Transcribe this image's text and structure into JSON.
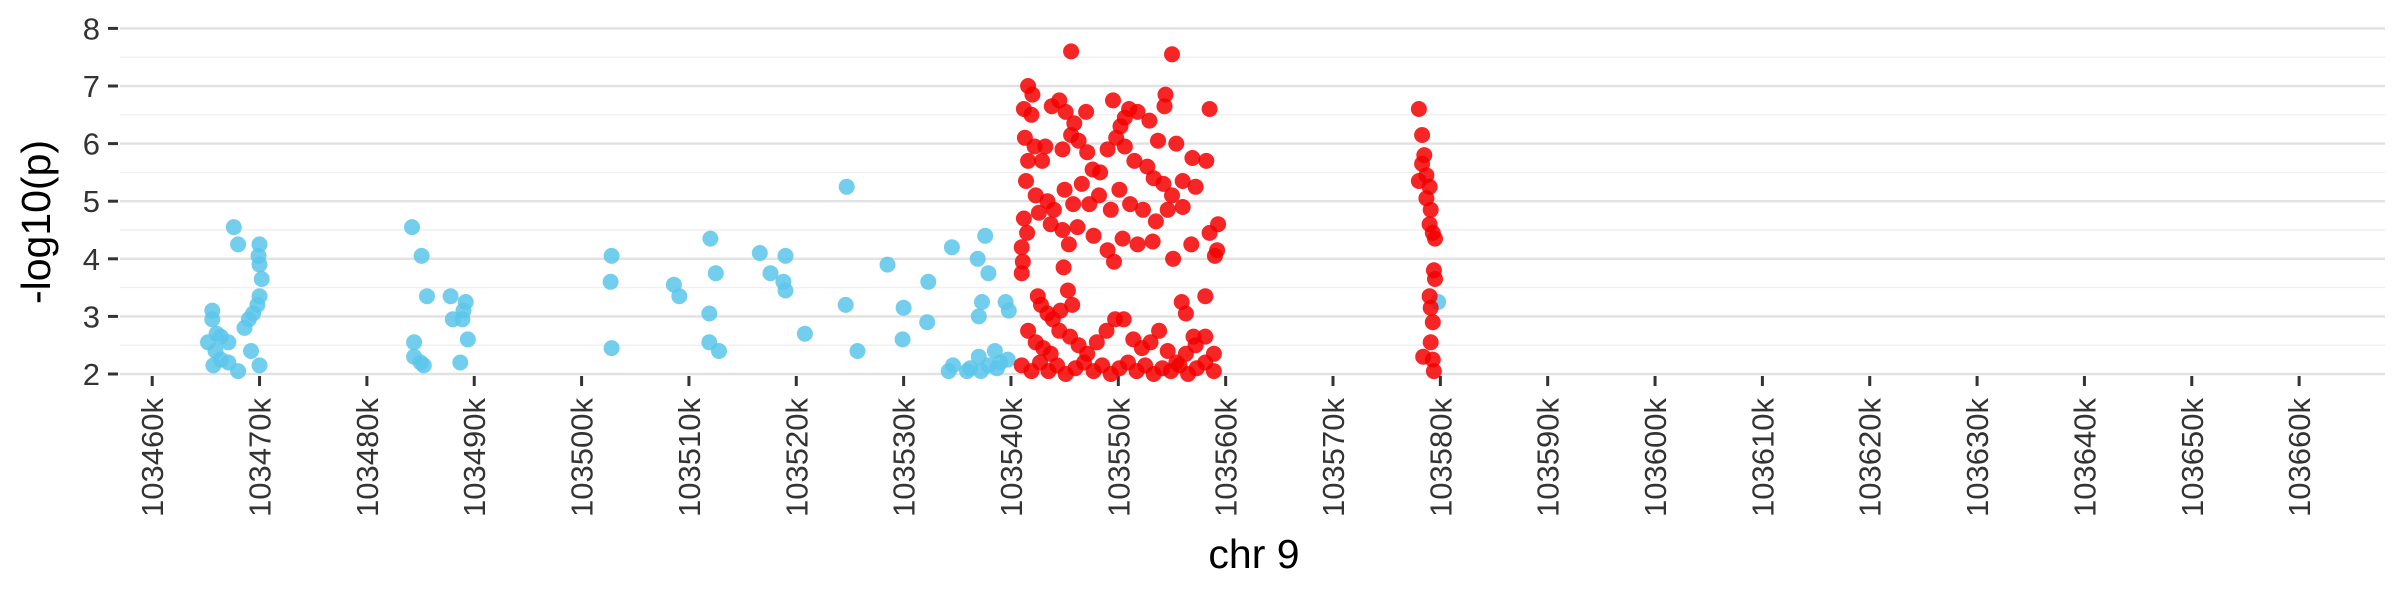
{
  "chart_data": {
    "type": "scatter",
    "title": "",
    "xlabel": "chr 9",
    "ylabel": "-log10(p)",
    "xlim": [
      103457000,
      103668000
    ],
    "ylim": [
      2,
      8.25
    ],
    "x_ticks": [
      103460000,
      103470000,
      103480000,
      103490000,
      103500000,
      103510000,
      103520000,
      103530000,
      103540000,
      103550000,
      103560000,
      103570000,
      103580000,
      103590000,
      103600000,
      103610000,
      103620000,
      103630000,
      103640000,
      103650000,
      103660000
    ],
    "x_tick_labels": [
      "103460k",
      "103470k",
      "103480k",
      "103490k",
      "103500k",
      "103510k",
      "103520k",
      "103530k",
      "103540k",
      "103550k",
      "103560k",
      "103570k",
      "103580k",
      "103590k",
      "103600k",
      "103610k",
      "103620k",
      "103630k",
      "103640k",
      "103650k",
      "103660k"
    ],
    "y_ticks": [
      2,
      3,
      4,
      5,
      6,
      7,
      8
    ],
    "y_tick_labels": [
      "2",
      "3",
      "4",
      "5",
      "6",
      "7",
      "8"
    ],
    "grid": "horizontal",
    "legend": "none",
    "series": [
      {
        "color": "#5bc5ea",
        "points": [
          [
            103467600,
            4.55
          ],
          [
            103468000,
            4.25
          ],
          [
            103470000,
            4.25
          ],
          [
            103469900,
            4.05
          ],
          [
            103470000,
            3.9
          ],
          [
            103470200,
            3.65
          ],
          [
            103470000,
            3.35
          ],
          [
            103469800,
            3.2
          ],
          [
            103469400,
            3.05
          ],
          [
            103469000,
            2.95
          ],
          [
            103468600,
            2.8
          ],
          [
            103469200,
            2.4
          ],
          [
            103470000,
            2.15
          ],
          [
            103465600,
            3.1
          ],
          [
            103465600,
            2.95
          ],
          [
            103466000,
            2.7
          ],
          [
            103465200,
            2.55
          ],
          [
            103466400,
            2.65
          ],
          [
            103467100,
            2.55
          ],
          [
            103465900,
            2.4
          ],
          [
            103466400,
            2.25
          ],
          [
            103465700,
            2.15
          ],
          [
            103467100,
            2.2
          ],
          [
            103468000,
            2.05
          ],
          [
            103484200,
            4.55
          ],
          [
            103485100,
            4.05
          ],
          [
            103485600,
            3.35
          ],
          [
            103487800,
            3.35
          ],
          [
            103488000,
            2.95
          ],
          [
            103489200,
            3.25
          ],
          [
            103489000,
            3.1
          ],
          [
            103488900,
            2.95
          ],
          [
            103489400,
            2.6
          ],
          [
            103484400,
            2.55
          ],
          [
            103484400,
            2.3
          ],
          [
            103485000,
            2.2
          ],
          [
            103485300,
            2.15
          ],
          [
            103488700,
            2.2
          ],
          [
            103502800,
            4.05
          ],
          [
            103502700,
            3.6
          ],
          [
            103502800,
            2.45
          ],
          [
            103508600,
            3.55
          ],
          [
            103509100,
            3.35
          ],
          [
            103512000,
            4.35
          ],
          [
            103512500,
            3.75
          ],
          [
            103511900,
            3.05
          ],
          [
            103511900,
            2.55
          ],
          [
            103512800,
            2.4
          ],
          [
            103516600,
            4.1
          ],
          [
            103517600,
            3.75
          ],
          [
            103519000,
            4.05
          ],
          [
            103518800,
            3.6
          ],
          [
            103519000,
            3.45
          ],
          [
            103520800,
            2.7
          ],
          [
            103524700,
            5.25
          ],
          [
            103524600,
            3.2
          ],
          [
            103525700,
            2.4
          ],
          [
            103528500,
            3.9
          ],
          [
            103530000,
            3.15
          ],
          [
            103529900,
            2.6
          ],
          [
            103532300,
            3.6
          ],
          [
            103532200,
            2.9
          ],
          [
            103534500,
            4.2
          ],
          [
            103537600,
            4.4
          ],
          [
            103536900,
            4.0
          ],
          [
            103537900,
            3.75
          ],
          [
            103537300,
            3.25
          ],
          [
            103537000,
            3.0
          ],
          [
            103539500,
            3.25
          ],
          [
            103539800,
            3.1
          ],
          [
            103538500,
            2.4
          ],
          [
            103537000,
            2.3
          ],
          [
            103539700,
            2.25
          ],
          [
            103534200,
            2.05
          ],
          [
            103534600,
            2.15
          ],
          [
            103535900,
            2.05
          ],
          [
            103536200,
            2.1
          ],
          [
            103537200,
            2.05
          ],
          [
            103537900,
            2.15
          ],
          [
            103538700,
            2.1
          ],
          [
            103539000,
            2.2
          ],
          [
            103579800,
            3.25
          ]
        ]
      },
      {
        "color": "#f40000",
        "points": [
          [
            103545600,
            7.6
          ],
          [
            103541600,
            7.0
          ],
          [
            103542000,
            6.85
          ],
          [
            103541200,
            6.6
          ],
          [
            103541900,
            6.5
          ],
          [
            103543800,
            6.65
          ],
          [
            103544500,
            6.75
          ],
          [
            103545100,
            6.55
          ],
          [
            103545900,
            6.35
          ],
          [
            103547000,
            6.55
          ],
          [
            103549500,
            6.75
          ],
          [
            103550600,
            6.45
          ],
          [
            103550200,
            6.3
          ],
          [
            103551000,
            6.6
          ],
          [
            103551800,
            6.55
          ],
          [
            103552900,
            6.4
          ],
          [
            103554400,
            6.85
          ],
          [
            103555000,
            7.55
          ],
          [
            103554300,
            6.65
          ],
          [
            103558500,
            6.6
          ],
          [
            103553700,
            6.05
          ],
          [
            103555400,
            6.0
          ],
          [
            103556900,
            5.75
          ],
          [
            103541300,
            6.1
          ],
          [
            103542200,
            5.95
          ],
          [
            103541600,
            5.7
          ],
          [
            103542900,
            5.7
          ],
          [
            103543200,
            5.95
          ],
          [
            103544800,
            5.9
          ],
          [
            103545600,
            6.15
          ],
          [
            103546300,
            6.05
          ],
          [
            103547100,
            5.85
          ],
          [
            103547600,
            5.55
          ],
          [
            103548300,
            5.5
          ],
          [
            103549000,
            5.9
          ],
          [
            103549800,
            6.1
          ],
          [
            103550600,
            5.95
          ],
          [
            103551500,
            5.7
          ],
          [
            103552700,
            5.6
          ],
          [
            103553300,
            5.4
          ],
          [
            103554200,
            5.3
          ],
          [
            103555000,
            5.1
          ],
          [
            103556000,
            5.35
          ],
          [
            103557200,
            5.25
          ],
          [
            103558200,
            5.7
          ],
          [
            103541400,
            5.35
          ],
          [
            103542300,
            5.1
          ],
          [
            103543400,
            5.0
          ],
          [
            103544000,
            4.85
          ],
          [
            103545000,
            5.2
          ],
          [
            103545800,
            4.95
          ],
          [
            103546600,
            5.3
          ],
          [
            103547300,
            4.95
          ],
          [
            103548200,
            5.1
          ],
          [
            103549300,
            4.85
          ],
          [
            103550100,
            5.2
          ],
          [
            103551100,
            4.95
          ],
          [
            103552300,
            4.85
          ],
          [
            103553500,
            4.65
          ],
          [
            103554600,
            4.85
          ],
          [
            103556000,
            4.9
          ],
          [
            103541200,
            4.7
          ],
          [
            103541500,
            4.45
          ],
          [
            103542600,
            4.8
          ],
          [
            103543700,
            4.6
          ],
          [
            103544800,
            4.5
          ],
          [
            103545400,
            4.25
          ],
          [
            103546200,
            4.55
          ],
          [
            103547700,
            4.4
          ],
          [
            103549000,
            4.15
          ],
          [
            103549600,
            3.95
          ],
          [
            103550400,
            4.35
          ],
          [
            103551800,
            4.25
          ],
          [
            103553200,
            4.3
          ],
          [
            103555100,
            4.0
          ],
          [
            103556800,
            4.25
          ],
          [
            103558500,
            4.45
          ],
          [
            103559300,
            4.6
          ],
          [
            103559200,
            4.15
          ],
          [
            103559000,
            4.05
          ],
          [
            103541000,
            4.2
          ],
          [
            103541100,
            3.95
          ],
          [
            103541000,
            3.75
          ],
          [
            103542500,
            3.35
          ],
          [
            103542800,
            3.2
          ],
          [
            103543400,
            3.05
          ],
          [
            103543900,
            2.95
          ],
          [
            103544600,
            3.1
          ],
          [
            103545700,
            3.2
          ],
          [
            103544900,
            3.85
          ],
          [
            103545300,
            3.45
          ],
          [
            103555900,
            3.25
          ],
          [
            103556300,
            3.05
          ],
          [
            103558100,
            3.35
          ],
          [
            103557000,
            2.65
          ],
          [
            103541600,
            2.75
          ],
          [
            103542300,
            2.55
          ],
          [
            103543000,
            2.45
          ],
          [
            103543700,
            2.35
          ],
          [
            103544500,
            2.75
          ],
          [
            103545500,
            2.65
          ],
          [
            103546300,
            2.5
          ],
          [
            103547100,
            2.35
          ],
          [
            103548000,
            2.55
          ],
          [
            103548900,
            2.75
          ],
          [
            103549700,
            2.95
          ],
          [
            103550500,
            2.95
          ],
          [
            103551400,
            2.6
          ],
          [
            103552200,
            2.45
          ],
          [
            103553000,
            2.55
          ],
          [
            103553800,
            2.75
          ],
          [
            103554600,
            2.4
          ],
          [
            103555400,
            2.2
          ],
          [
            103556300,
            2.35
          ],
          [
            103557200,
            2.5
          ],
          [
            103558100,
            2.65
          ],
          [
            103558900,
            2.35
          ],
          [
            103541000,
            2.15
          ],
          [
            103541900,
            2.05
          ],
          [
            103542700,
            2.2
          ],
          [
            103543500,
            2.05
          ],
          [
            103544300,
            2.15
          ],
          [
            103545100,
            2.0
          ],
          [
            103546000,
            2.1
          ],
          [
            103546800,
            2.2
          ],
          [
            103547700,
            2.05
          ],
          [
            103548500,
            2.15
          ],
          [
            103549300,
            2.0
          ],
          [
            103550100,
            2.1
          ],
          [
            103550900,
            2.2
          ],
          [
            103551700,
            2.05
          ],
          [
            103552500,
            2.15
          ],
          [
            103553300,
            2.0
          ],
          [
            103554100,
            2.1
          ],
          [
            103554900,
            2.05
          ],
          [
            103555700,
            2.15
          ],
          [
            103556500,
            2.0
          ],
          [
            103557300,
            2.1
          ],
          [
            103558100,
            2.2
          ],
          [
            103558900,
            2.05
          ],
          [
            103578000,
            6.6
          ],
          [
            103578300,
            6.15
          ],
          [
            103578500,
            5.8
          ],
          [
            103578300,
            5.65
          ],
          [
            103578700,
            5.45
          ],
          [
            103578000,
            5.35
          ],
          [
            103579000,
            5.25
          ],
          [
            103578700,
            5.05
          ],
          [
            103579100,
            4.85
          ],
          [
            103579000,
            4.6
          ],
          [
            103579300,
            4.45
          ],
          [
            103579500,
            4.35
          ],
          [
            103579400,
            3.8
          ],
          [
            103579500,
            3.65
          ],
          [
            103579000,
            3.35
          ],
          [
            103579100,
            3.15
          ],
          [
            103579300,
            2.9
          ],
          [
            103579100,
            2.55
          ],
          [
            103578400,
            2.3
          ],
          [
            103579300,
            2.25
          ],
          [
            103579400,
            2.05
          ]
        ]
      }
    ]
  }
}
